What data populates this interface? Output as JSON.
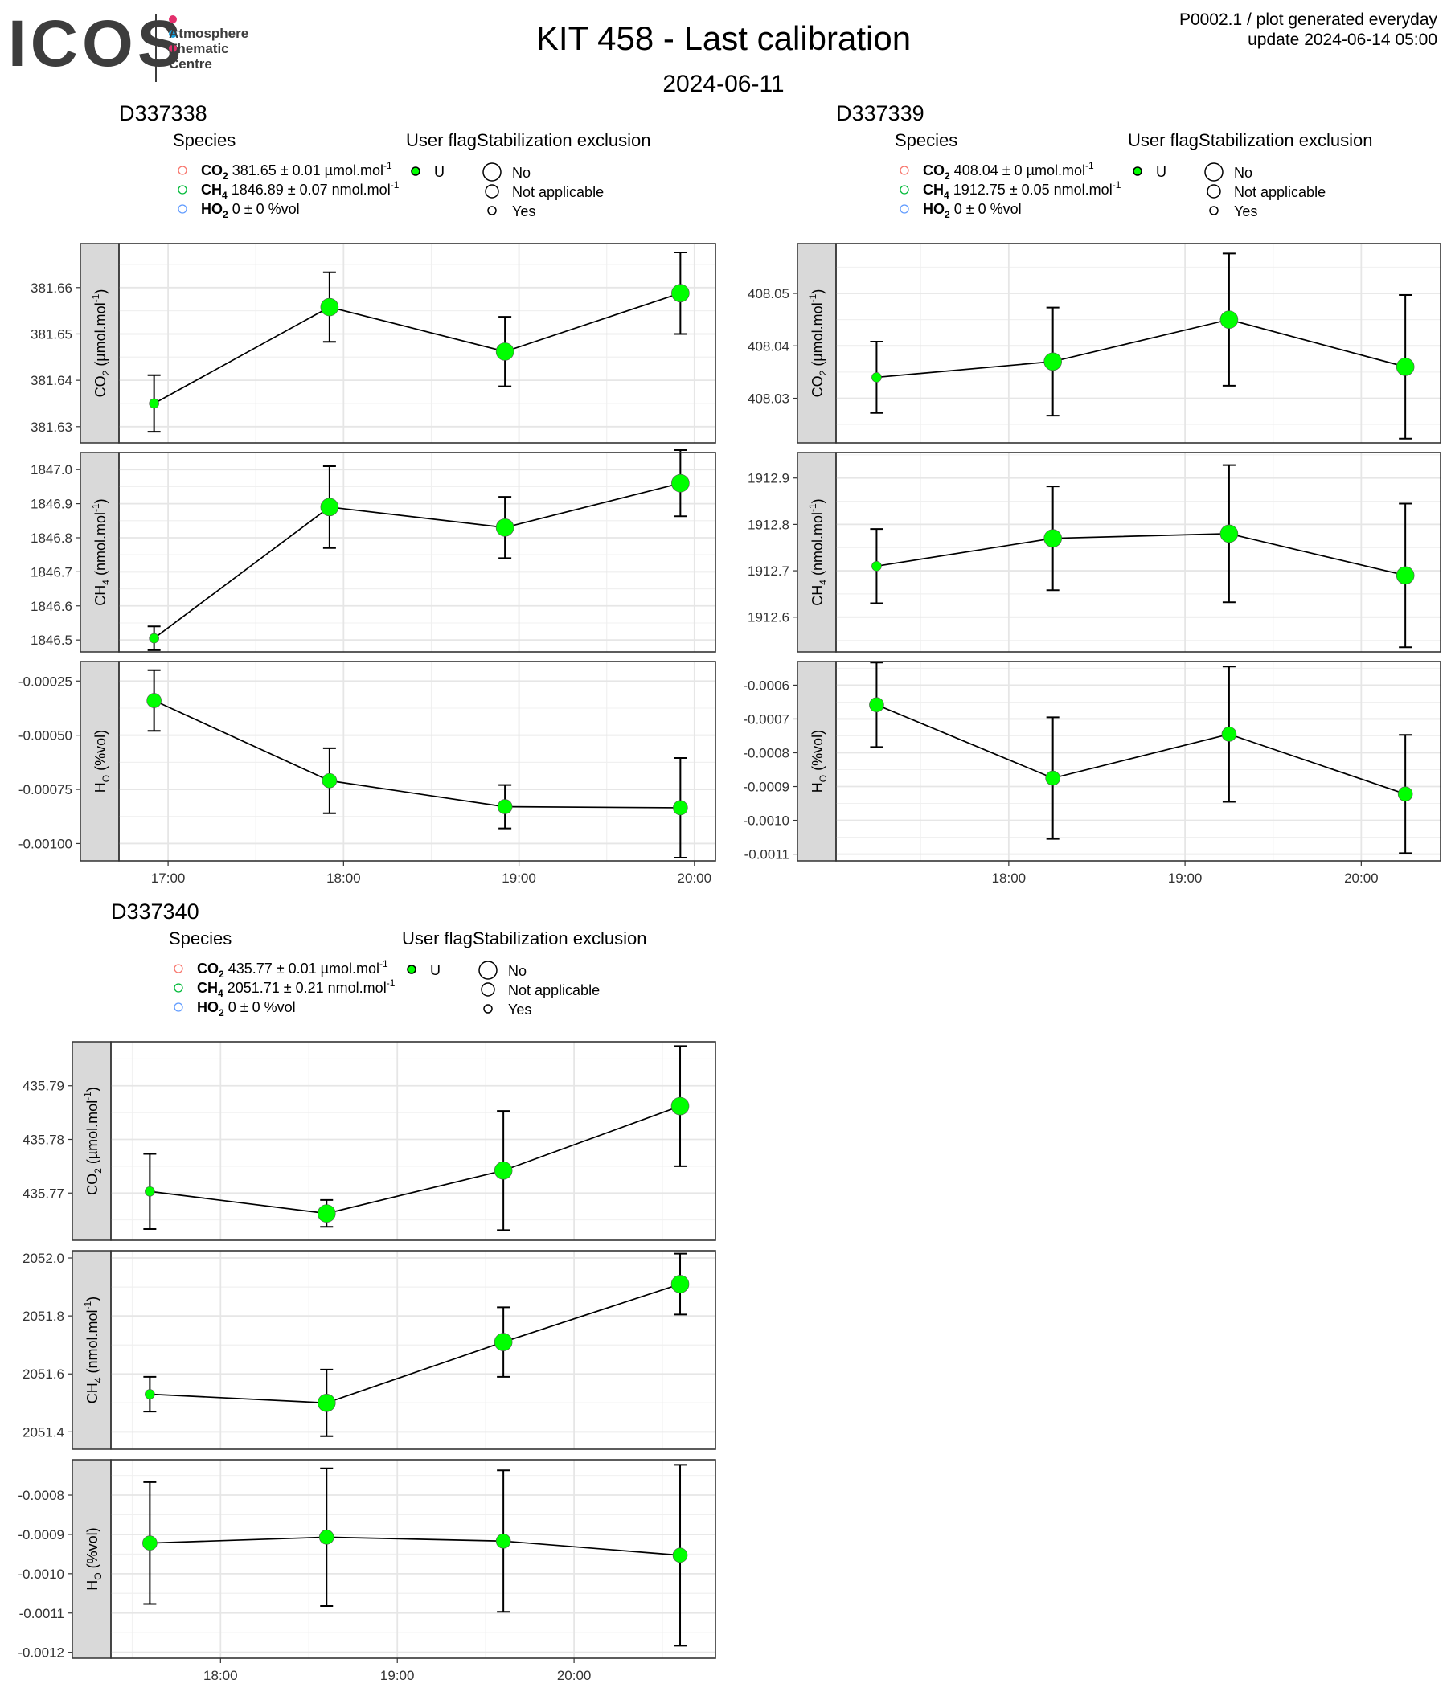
{
  "header": {
    "logo_text": "ICOS",
    "logo_subtitle": "Atmosphere\nThematic\nCentre",
    "logo_dot_colors": [
      "#e3306c",
      "#1aa3e0",
      "#e3306c"
    ],
    "title": "KIT 458 - Last calibration",
    "date": "2024-06-11",
    "meta_line1": "P0002.1 / plot generated everyday",
    "meta_line2": "update  2024-06-14 05:00"
  },
  "legend_labels": {
    "species_title": "Species",
    "flag_title": "User flag",
    "stab_title": "Stabilization exclusion",
    "flag_value": "U",
    "stab_items": [
      "No",
      "Not applicable",
      "Yes"
    ]
  },
  "colors": {
    "co2_legend": "#f8766d",
    "ch4_legend": "#00ba38",
    "h2o_legend": "#619cff",
    "point_fill": "#00ff00",
    "strip_fill": "#d9d9d9"
  },
  "chart_data": [
    {
      "type": "scatter",
      "cylinder": "D337338",
      "x_ticks": [
        "17:00",
        "18:00",
        "19:00",
        "20:00"
      ],
      "xlim": [
        16.72,
        20.12
      ],
      "legend": [
        {
          "species": "CO2",
          "sub": "2",
          "value": "381.65 ± 0.01",
          "unit": "µmol.mol",
          "unit_sup": "-1"
        },
        {
          "species": "CH4",
          "sub": "4",
          "value": "1846.89 ± 0.07",
          "unit": "nmol.mol",
          "unit_sup": "-1"
        },
        {
          "species": "H2O",
          "sub": "2",
          "value": "0 ± 0",
          "unit": "%vol",
          "unit_sup": ""
        }
      ],
      "panels": [
        {
          "ylabel": "CO2 (µmol.mol-1)",
          "ylim": [
            381.6265,
            381.6695
          ],
          "ticks": [
            "381.63",
            "381.64",
            "381.65",
            "381.66"
          ],
          "x": [
            16.92,
            17.92,
            18.92,
            19.92
          ],
          "y": [
            381.635,
            381.6558,
            381.6462,
            381.6588
          ],
          "err": [
            0.0061,
            0.0075,
            0.0075,
            0.0088
          ],
          "size": [
            "yes",
            "no",
            "no",
            "no"
          ]
        },
        {
          "ylabel": "CH4 (nmol.mol-1)",
          "ylim": [
            1846.465,
            1847.05
          ],
          "ticks": [
            "1846.5",
            "1846.6",
            "1846.7",
            "1846.8",
            "1846.9",
            "1847.0"
          ],
          "x": [
            16.92,
            17.92,
            18.92,
            19.92
          ],
          "y": [
            1846.505,
            1846.89,
            1846.83,
            1846.96
          ],
          "err": [
            0.035,
            0.12,
            0.09,
            0.097
          ],
          "size": [
            "yes",
            "no",
            "no",
            "no"
          ]
        },
        {
          "ylabel": "H2O (%vol)",
          "ylim": [
            -0.00108,
            -0.00016
          ],
          "ticks": [
            "-0.00025",
            "-0.00050",
            "-0.00075",
            "-0.00100"
          ],
          "x": [
            16.92,
            17.92,
            18.92,
            19.92
          ],
          "y": [
            -0.00034,
            -0.00071,
            -0.00083,
            -0.000835
          ],
          "err": [
            0.00014,
            0.00015,
            0.0001,
            0.00023
          ],
          "size": [
            "na",
            "na",
            "na",
            "na"
          ]
        }
      ]
    },
    {
      "type": "scatter",
      "cylinder": "D337339",
      "x_ticks": [
        "18:00",
        "19:00",
        "20:00"
      ],
      "xlim": [
        17.02,
        20.45
      ],
      "legend": [
        {
          "species": "CO2",
          "sub": "2",
          "value": "408.04 ± 0",
          "unit": "µmol.mol",
          "unit_sup": "-1"
        },
        {
          "species": "CH4",
          "sub": "4",
          "value": "1912.75 ± 0.05",
          "unit": "nmol.mol",
          "unit_sup": "-1"
        },
        {
          "species": "H2O",
          "sub": "2",
          "value": "0 ± 0",
          "unit": "%vol",
          "unit_sup": ""
        }
      ],
      "panels": [
        {
          "ylabel": "CO2 (µmol.mol-1)",
          "ylim": [
            408.0215,
            408.0595
          ],
          "ticks": [
            "408.03",
            "408.04",
            "408.05"
          ],
          "x": [
            17.25,
            18.25,
            19.25,
            20.25
          ],
          "y": [
            408.034,
            408.037,
            408.045,
            408.036
          ],
          "err": [
            0.0068,
            0.0103,
            0.0126,
            0.0137
          ],
          "size": [
            "yes",
            "no",
            "no",
            "no"
          ]
        },
        {
          "ylabel": "CH4 (nmol.mol-1)",
          "ylim": [
            1912.525,
            1912.955
          ],
          "ticks": [
            "1912.6",
            "1912.7",
            "1912.8",
            "1912.9"
          ],
          "x": [
            17.25,
            18.25,
            19.25,
            20.25
          ],
          "y": [
            1912.71,
            1912.77,
            1912.78,
            1912.69
          ],
          "err": [
            0.08,
            0.112,
            0.148,
            0.155
          ],
          "size": [
            "yes",
            "no",
            "no",
            "no"
          ]
        },
        {
          "ylabel": "H2O (%vol)",
          "ylim": [
            -0.00112,
            -0.00053
          ],
          "ticks": [
            "-0.0006",
            "-0.0007",
            "-0.0008",
            "-0.0009",
            "-0.0010",
            "-0.0011"
          ],
          "x": [
            17.25,
            18.25,
            19.25,
            20.25
          ],
          "y": [
            -0.000658,
            -0.000875,
            -0.000745,
            -0.000922
          ],
          "err": [
            0.000125,
            0.00018,
            0.0002,
            0.000175
          ],
          "size": [
            "na",
            "na",
            "na",
            "na"
          ]
        }
      ]
    },
    {
      "type": "scatter",
      "cylinder": "D337340",
      "x_ticks": [
        "18:00",
        "19:00",
        "20:00"
      ],
      "xlim": [
        17.38,
        20.8
      ],
      "legend": [
        {
          "species": "CO2",
          "sub": "2",
          "value": "435.77 ± 0.01",
          "unit": "µmol.mol",
          "unit_sup": "-1"
        },
        {
          "species": "CH4",
          "sub": "4",
          "value": "2051.71 ± 0.21",
          "unit": "nmol.mol",
          "unit_sup": "-1"
        },
        {
          "species": "H2O",
          "sub": "2",
          "value": "0 ± 0",
          "unit": "%vol",
          "unit_sup": ""
        }
      ],
      "panels": [
        {
          "ylabel": "CO2 (µmol.mol-1)",
          "ylim": [
            435.7612,
            435.7982
          ],
          "ticks": [
            "435.77",
            "435.78",
            "435.79"
          ],
          "x": [
            17.6,
            18.6,
            19.6,
            20.6
          ],
          "y": [
            435.7703,
            435.7662,
            435.7742,
            435.7862
          ],
          "err": [
            0.007,
            0.0025,
            0.0111,
            0.0112
          ],
          "size": [
            "yes",
            "no",
            "no",
            "no"
          ]
        },
        {
          "ylabel": "CH4 (nmol.mol-1)",
          "ylim": [
            2051.34,
            2052.025
          ],
          "ticks": [
            "2051.4",
            "2051.6",
            "2051.8",
            "2052.0"
          ],
          "x": [
            17.6,
            18.6,
            19.6,
            20.6
          ],
          "y": [
            2051.53,
            2051.5,
            2051.71,
            2051.91
          ],
          "err": [
            0.06,
            0.115,
            0.12,
            0.105
          ],
          "size": [
            "yes",
            "no",
            "no",
            "no"
          ]
        },
        {
          "ylabel": "H2O (%vol)",
          "ylim": [
            -0.001215,
            -0.00071
          ],
          "ticks": [
            "-0.0008",
            "-0.0009",
            "-0.0010",
            "-0.0011",
            "-0.0012"
          ],
          "x": [
            17.6,
            18.6,
            19.6,
            20.6
          ],
          "y": [
            -0.000922,
            -0.000907,
            -0.000917,
            -0.000953
          ],
          "err": [
            0.000155,
            0.000175,
            0.00018,
            0.00023
          ],
          "size": [
            "na",
            "na",
            "na",
            "na"
          ]
        }
      ]
    }
  ]
}
